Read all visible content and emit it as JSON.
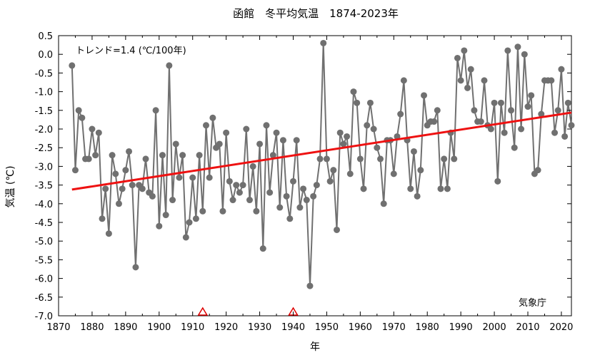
{
  "chart_data": {
    "type": "line",
    "title": "函館　冬平均気温　1874-2023年",
    "xlabel": "年",
    "ylabel": "気温 (℃)",
    "xlim": [
      1870,
      2023
    ],
    "ylim": [
      -7.0,
      0.5
    ],
    "x_ticks": [
      1870,
      1880,
      1890,
      1900,
      1910,
      1920,
      1930,
      1940,
      1950,
      1960,
      1970,
      1980,
      1990,
      2000,
      2010,
      2020
    ],
    "y_ticks": [
      "0.5",
      "0.0",
      "-0.5",
      "-1.0",
      "-1.5",
      "-2.0",
      "-2.5",
      "-3.0",
      "-3.5",
      "-4.0",
      "-4.5",
      "-5.0",
      "-5.5",
      "-6.0",
      "-6.5",
      "-7.0"
    ],
    "series": [
      {
        "x": [
          1874,
          1875,
          1876,
          1877,
          1878,
          1879,
          1880,
          1881,
          1882,
          1883,
          1884,
          1885,
          1886,
          1887,
          1888,
          1889,
          1890,
          1891,
          1892,
          1893,
          1894,
          1895,
          1896,
          1897,
          1898,
          1899,
          1900,
          1901,
          1902,
          1903,
          1904,
          1905,
          1906,
          1907,
          1908,
          1909,
          1910,
          1911,
          1912,
          1913,
          1914,
          1915,
          1916,
          1917,
          1918,
          1919,
          1920,
          1921,
          1922,
          1923,
          1924,
          1925,
          1926,
          1927,
          1928,
          1929,
          1930,
          1931,
          1932,
          1933,
          1934,
          1935,
          1936,
          1937,
          1938,
          1939,
          1940,
          1941,
          1942,
          1943,
          1944,
          1945,
          1946,
          1947,
          1948,
          1949,
          1950,
          1951,
          1952,
          1953,
          1954,
          1955,
          1956,
          1957,
          1958,
          1959,
          1960,
          1961,
          1962,
          1963,
          1964,
          1965,
          1966,
          1967,
          1968,
          1969,
          1970,
          1971,
          1972,
          1973,
          1974,
          1975,
          1976,
          1977,
          1978,
          1979,
          1980,
          1981,
          1982,
          1983,
          1984,
          1985,
          1986,
          1987,
          1988,
          1989,
          1990,
          1991,
          1992,
          1993,
          1994,
          1995,
          1996,
          1997,
          1998,
          1999,
          2000,
          2001,
          2002,
          2003,
          2004,
          2005,
          2006,
          2007,
          2008,
          2009,
          2010,
          2011,
          2012,
          2013,
          2014,
          2015,
          2016,
          2017,
          2018,
          2019,
          2020,
          2021,
          2022,
          2023
        ],
        "values": [
          -0.3,
          -3.1,
          -1.5,
          -1.7,
          -2.8,
          -2.8,
          -2.0,
          -2.7,
          -2.1,
          -4.4,
          -3.6,
          -4.8,
          -2.7,
          -3.2,
          -4.0,
          -3.6,
          -3.1,
          -2.6,
          -3.5,
          -5.7,
          -3.5,
          -3.6,
          -2.8,
          -3.7,
          -3.8,
          -1.5,
          -4.6,
          -2.7,
          -4.3,
          -0.3,
          -3.9,
          -2.4,
          -3.3,
          -2.7,
          -4.9,
          -4.5,
          -3.3,
          -4.4,
          -2.7,
          -4.2,
          -1.9,
          -3.3,
          -1.7,
          -2.5,
          -2.4,
          -4.2,
          -2.1,
          -3.4,
          -3.9,
          -3.5,
          -3.7,
          -3.5,
          -2.0,
          -3.9,
          -3.0,
          -4.2,
          -2.4,
          -5.2,
          -1.9,
          -3.7,
          -2.7,
          -2.1,
          -4.1,
          -2.3,
          -3.8,
          -4.4,
          -3.4,
          -2.3,
          -4.1,
          -3.6,
          -3.9,
          -6.2,
          -3.8,
          -3.5,
          -2.8,
          0.3,
          -2.8,
          -3.4,
          -3.1,
          -4.7,
          -2.1,
          -2.4,
          -2.2,
          -3.2,
          -1.0,
          -1.3,
          -2.8,
          -3.6,
          -1.9,
          -1.3,
          -2.0,
          -2.5,
          -2.8,
          -4.0,
          -2.3,
          -2.3,
          -3.2,
          -2.2,
          -1.6,
          -0.7,
          -2.3,
          -3.6,
          -2.6,
          -3.8,
          -3.1,
          -1.1,
          -1.9,
          -1.8,
          -1.8,
          -1.5,
          -3.6,
          -2.8,
          -3.6,
          -2.1,
          -2.8,
          -0.1,
          -0.7,
          0.1,
          -0.9,
          -0.4,
          -1.5,
          -1.8,
          -1.8,
          -0.7,
          -1.9,
          -2.0,
          -1.3,
          -3.4,
          -1.3,
          -2.1,
          0.1,
          -1.5,
          -2.5,
          0.2,
          -2.0,
          0.0,
          -1.4,
          -1.1,
          -3.2,
          -3.1,
          -1.6,
          -0.7,
          -0.7,
          -0.7,
          -2.1,
          -1.5,
          -0.4,
          -2.2,
          -1.3,
          -1.9
        ],
        "color": "#707070"
      }
    ],
    "trend": {
      "x": [
        1874,
        2023
      ],
      "y": [
        -3.62,
        -1.56
      ],
      "color": "#ee1111"
    },
    "markers": {
      "x": [
        1913,
        1940
      ],
      "color": "#dd0000"
    },
    "annotations": {
      "trend_label": "トレンド=1.4 (℃/100年)",
      "source": "気象庁"
    },
    "grid": false,
    "legend": "none"
  }
}
